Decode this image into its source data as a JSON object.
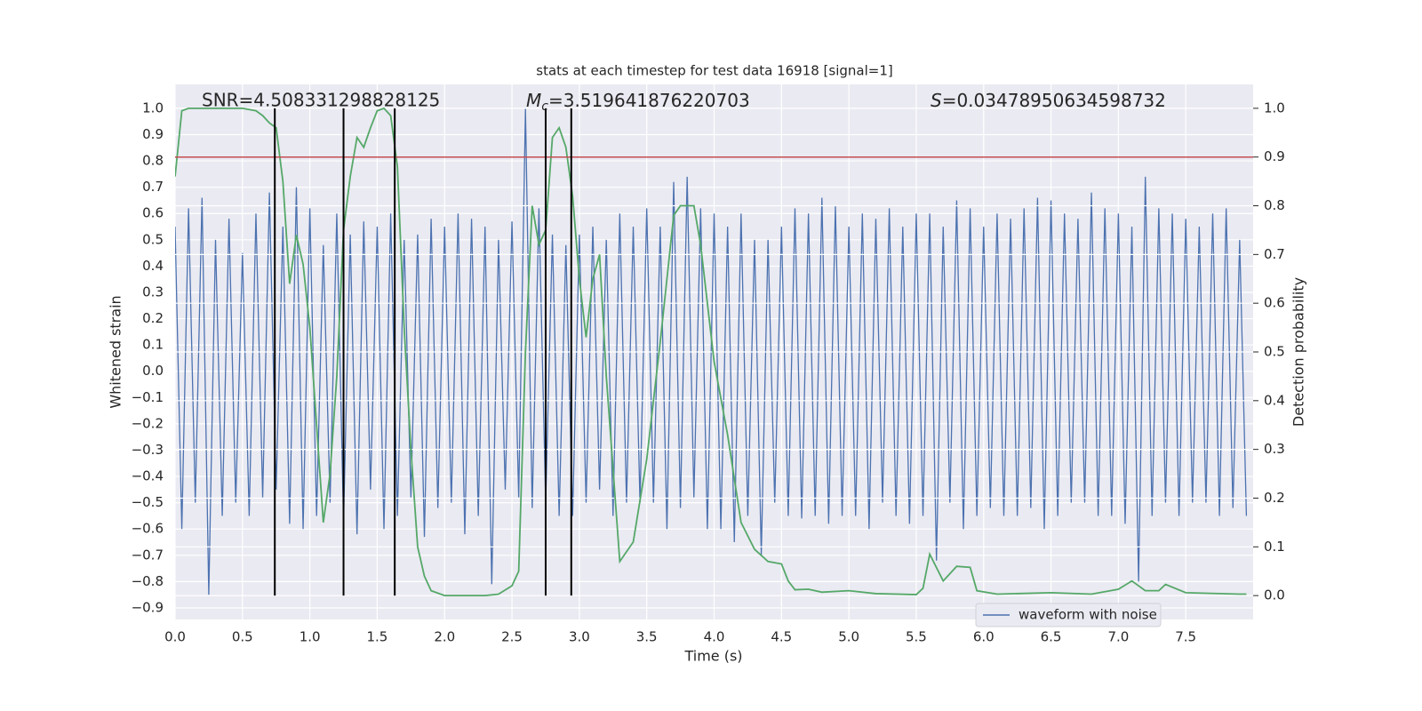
{
  "chart_data": {
    "type": "line",
    "title": "stats at each timestep for test data 16918 [signal=1]",
    "xlabel": "Time (s)",
    "ylabel": "Whitened strain",
    "y2label": "Detection probability",
    "annotations": {
      "snr": "SNR=4.508331298828125",
      "chirp_mass": {
        "symbol": "M",
        "subscript": "c",
        "text": "=3.519641876220703"
      },
      "score": {
        "symbol": "S",
        "text": "=0.03478950634598732"
      }
    },
    "xlim": [
      0,
      8
    ],
    "ylim": [
      -0.944,
      1.091
    ],
    "y2lim": [
      -0.049,
      1.049
    ],
    "xticks": [
      {
        "value": 0,
        "label": "0.0"
      },
      0.5,
      {
        "value": 1,
        "label": "1.0"
      },
      1.5,
      {
        "value": 2,
        "label": "2.0"
      },
      2.5,
      {
        "value": 3,
        "label": "3.0"
      },
      3.5,
      {
        "value": 4,
        "label": "4.0"
      },
      4.5,
      {
        "value": 5,
        "label": "5.0"
      },
      5.5,
      {
        "value": 6,
        "label": "6.0"
      },
      6.5,
      {
        "value": 7,
        "label": "7.0"
      },
      7.5
    ],
    "yticks": [
      {
        "value": -0.9,
        "label": "−0.9"
      },
      {
        "value": -0.8,
        "label": "−0.8"
      },
      {
        "value": -0.7,
        "label": "−0.7"
      },
      {
        "value": -0.6,
        "label": "−0.6"
      },
      {
        "value": -0.5,
        "label": "−0.5"
      },
      {
        "value": -0.4,
        "label": "−0.4"
      },
      {
        "value": -0.3,
        "label": "−0.3"
      },
      {
        "value": -0.2,
        "label": "−0.2"
      },
      {
        "value": -0.1,
        "label": "−0.1"
      },
      {
        "value": 0,
        "label": "0.0"
      },
      0.1,
      0.2,
      0.3,
      0.4,
      0.5,
      0.6,
      0.7,
      0.8,
      0.9,
      {
        "value": 1,
        "label": "1.0"
      }
    ],
    "y2ticks": [
      {
        "value": 0,
        "label": "0.0"
      },
      0.1,
      0.2,
      0.3,
      0.4,
      0.5,
      0.6,
      0.7,
      0.8,
      0.9,
      {
        "value": 1,
        "label": "1.0"
      }
    ],
    "grid": true,
    "legend": "lower right",
    "series": [
      {
        "name": "waveform with noise",
        "color": "#4c72b0",
        "x": [
          0,
          0.05,
          0.1,
          0.15,
          0.2,
          0.25,
          0.3,
          0.35,
          0.4,
          0.45,
          0.5,
          0.55,
          0.6,
          0.65,
          0.7,
          0.75,
          0.8,
          0.85,
          0.9,
          0.95,
          1,
          1.05,
          1.1,
          1.15,
          1.2,
          1.25,
          1.3,
          1.35,
          1.4,
          1.45,
          1.5,
          1.55,
          1.6,
          1.65,
          1.7,
          1.75,
          1.8,
          1.85,
          1.9,
          1.95,
          2,
          2.05,
          2.1,
          2.15,
          2.2,
          2.25,
          2.3,
          2.35,
          2.4,
          2.45,
          2.5,
          2.55,
          2.6,
          2.65,
          2.7,
          2.75,
          2.8,
          2.85,
          2.9,
          2.95,
          3,
          3.05,
          3.1,
          3.15,
          3.2,
          3.25,
          3.3,
          3.35,
          3.4,
          3.45,
          3.5,
          3.55,
          3.6,
          3.65,
          3.7,
          3.75,
          3.8,
          3.85,
          3.9,
          3.95,
          4,
          4.05,
          4.1,
          4.15,
          4.2,
          4.25,
          4.3,
          4.35,
          4.4,
          4.45,
          4.5,
          4.55,
          4.6,
          4.65,
          4.7,
          4.75,
          4.8,
          4.85,
          4.9,
          4.95,
          5,
          5.05,
          5.1,
          5.15,
          5.2,
          5.25,
          5.3,
          5.35,
          5.4,
          5.45,
          5.5,
          5.55,
          5.6,
          5.65,
          5.7,
          5.75,
          5.8,
          5.85,
          5.9,
          5.95,
          6,
          6.05,
          6.1,
          6.15,
          6.2,
          6.25,
          6.3,
          6.35,
          6.4,
          6.45,
          6.5,
          6.55,
          6.6,
          6.65,
          6.7,
          6.75,
          6.8,
          6.85,
          6.9,
          6.95,
          7,
          7.05,
          7.1,
          7.15,
          7.2,
          7.25,
          7.3,
          7.35,
          7.4,
          7.45,
          7.5,
          7.55,
          7.6,
          7.65,
          7.7,
          7.75,
          7.8,
          7.85,
          7.9,
          7.95
        ],
        "values": [
          0.55,
          -0.6,
          0.62,
          -0.5,
          0.66,
          -0.85,
          0.5,
          -0.55,
          0.58,
          -0.5,
          0.45,
          -0.55,
          0.6,
          -0.48,
          0.68,
          -0.45,
          0.55,
          -0.58,
          0.7,
          -0.6,
          0.62,
          -0.55,
          0.48,
          -0.5,
          0.6,
          -0.57,
          0.52,
          -0.62,
          0.57,
          -0.45,
          0.55,
          -0.6,
          0.6,
          -0.55,
          0.5,
          -0.48,
          0.52,
          -0.63,
          0.58,
          -0.52,
          0.55,
          -0.5,
          0.6,
          -0.62,
          0.58,
          -0.55,
          0.55,
          -0.81,
          0.5,
          -0.45,
          0.57,
          -0.48,
          1.0,
          -0.52,
          0.62,
          -0.5,
          0.52,
          -0.55,
          0.48,
          -0.55,
          0.52,
          -0.5,
          0.55,
          -0.45,
          0.5,
          -0.55,
          0.6,
          -0.5,
          0.55,
          -0.5,
          0.62,
          -0.5,
          0.55,
          -0.6,
          0.72,
          -0.52,
          0.74,
          -0.48,
          0.62,
          -0.6,
          0.6,
          -0.6,
          0.55,
          -0.65,
          0.6,
          -0.55,
          0.5,
          -0.7,
          0.5,
          -0.5,
          0.55,
          -0.55,
          0.62,
          -0.56,
          0.6,
          -0.55,
          0.66,
          -0.58,
          0.63,
          -0.55,
          0.55,
          -0.55,
          0.6,
          -0.6,
          0.58,
          -0.5,
          0.62,
          -0.55,
          0.55,
          -0.58,
          0.6,
          -0.55,
          0.6,
          -0.72,
          0.55,
          -0.5,
          0.65,
          -0.6,
          0.62,
          -0.55,
          0.55,
          -0.52,
          0.6,
          -0.55,
          0.58,
          -0.55,
          0.62,
          -0.52,
          0.66,
          -0.6,
          0.65,
          -0.55,
          0.6,
          -0.5,
          0.58,
          -0.5,
          0.68,
          -0.55,
          0.62,
          -0.55,
          0.6,
          -0.58,
          0.55,
          -0.8,
          0.74,
          -0.55,
          0.62,
          -0.5,
          0.6,
          -0.55,
          0.58,
          -0.5,
          0.55,
          -0.5,
          0.6,
          -0.55,
          0.62,
          -0.52,
          0.5,
          -0.55
        ]
      },
      {
        "color": "#55a868",
        "axis": "y2",
        "x": [
          0,
          0.05,
          0.1,
          0.2,
          0.3,
          0.4,
          0.5,
          0.6,
          0.65,
          0.7,
          0.75,
          0.8,
          0.85,
          0.9,
          0.95,
          1,
          1.05,
          1.1,
          1.15,
          1.2,
          1.25,
          1.3,
          1.35,
          1.4,
          1.45,
          1.5,
          1.55,
          1.6,
          1.65,
          1.7,
          1.75,
          1.8,
          1.85,
          1.9,
          2,
          2.3,
          2.4,
          2.5,
          2.55,
          2.6,
          2.65,
          2.7,
          2.75,
          2.8,
          2.85,
          2.9,
          2.95,
          3,
          3.05,
          3.1,
          3.15,
          3.2,
          3.3,
          3.4,
          3.5,
          3.6,
          3.7,
          3.75,
          3.8,
          3.85,
          3.9,
          4,
          4.1,
          4.2,
          4.3,
          4.4,
          4.5,
          4.55,
          4.6,
          4.7,
          4.8,
          5,
          5.2,
          5.5,
          5.55,
          5.6,
          5.7,
          5.8,
          5.9,
          5.95,
          6.1,
          6.5,
          6.8,
          7,
          7.1,
          7.2,
          7.3,
          7.35,
          7.5,
          7.9,
          7.95
        ],
        "values": [
          0.86,
          0.995,
          1,
          1,
          1,
          1,
          1,
          0.995,
          0.985,
          0.97,
          0.96,
          0.85,
          0.64,
          0.74,
          0.68,
          0.55,
          0.35,
          0.15,
          0.25,
          0.45,
          0.75,
          0.86,
          0.94,
          0.92,
          0.96,
          0.995,
          1,
          0.985,
          0.88,
          0.55,
          0.3,
          0.1,
          0.04,
          0.01,
          0,
          0,
          0.003,
          0.02,
          0.05,
          0.5,
          0.8,
          0.72,
          0.75,
          0.94,
          0.96,
          0.92,
          0.82,
          0.65,
          0.53,
          0.65,
          0.7,
          0.45,
          0.07,
          0.11,
          0.28,
          0.52,
          0.78,
          0.8,
          0.8,
          0.8,
          0.72,
          0.48,
          0.33,
          0.15,
          0.095,
          0.07,
          0.065,
          0.03,
          0.012,
          0.013,
          0.007,
          0.01,
          0.004,
          0.002,
          0.015,
          0.085,
          0.03,
          0.06,
          0.058,
          0.01,
          0.003,
          0.006,
          0.003,
          0.013,
          0.03,
          0.01,
          0.01,
          0.023,
          0.006,
          0.003,
          0.003
        ]
      }
    ],
    "threshold": {
      "y2": 0.9,
      "color": "#c44e52"
    },
    "vlines": {
      "x": [
        0.74,
        1.25,
        1.63,
        2.75,
        2.94
      ],
      "y2": [
        0,
        1
      ],
      "color": "#000000"
    }
  }
}
